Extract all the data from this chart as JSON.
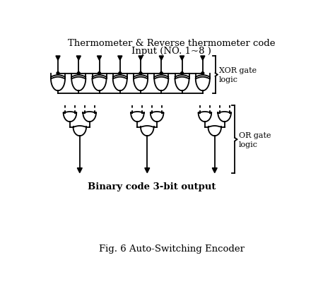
{
  "title_top": "Thermometer & Reverse thermometer code",
  "title_top2": "Input (NO. 1~8 )",
  "label_xor": "XOR gate\nlogic",
  "label_or": "OR gate\nlogic",
  "label_bottom": "Binary code 3-bit output",
  "label_fig": "Fig. 6 Auto-Switching Encoder",
  "bg_color": "#ffffff",
  "line_color": "#000000",
  "fig_width": 4.74,
  "fig_height": 4.1,
  "dpi": 100
}
